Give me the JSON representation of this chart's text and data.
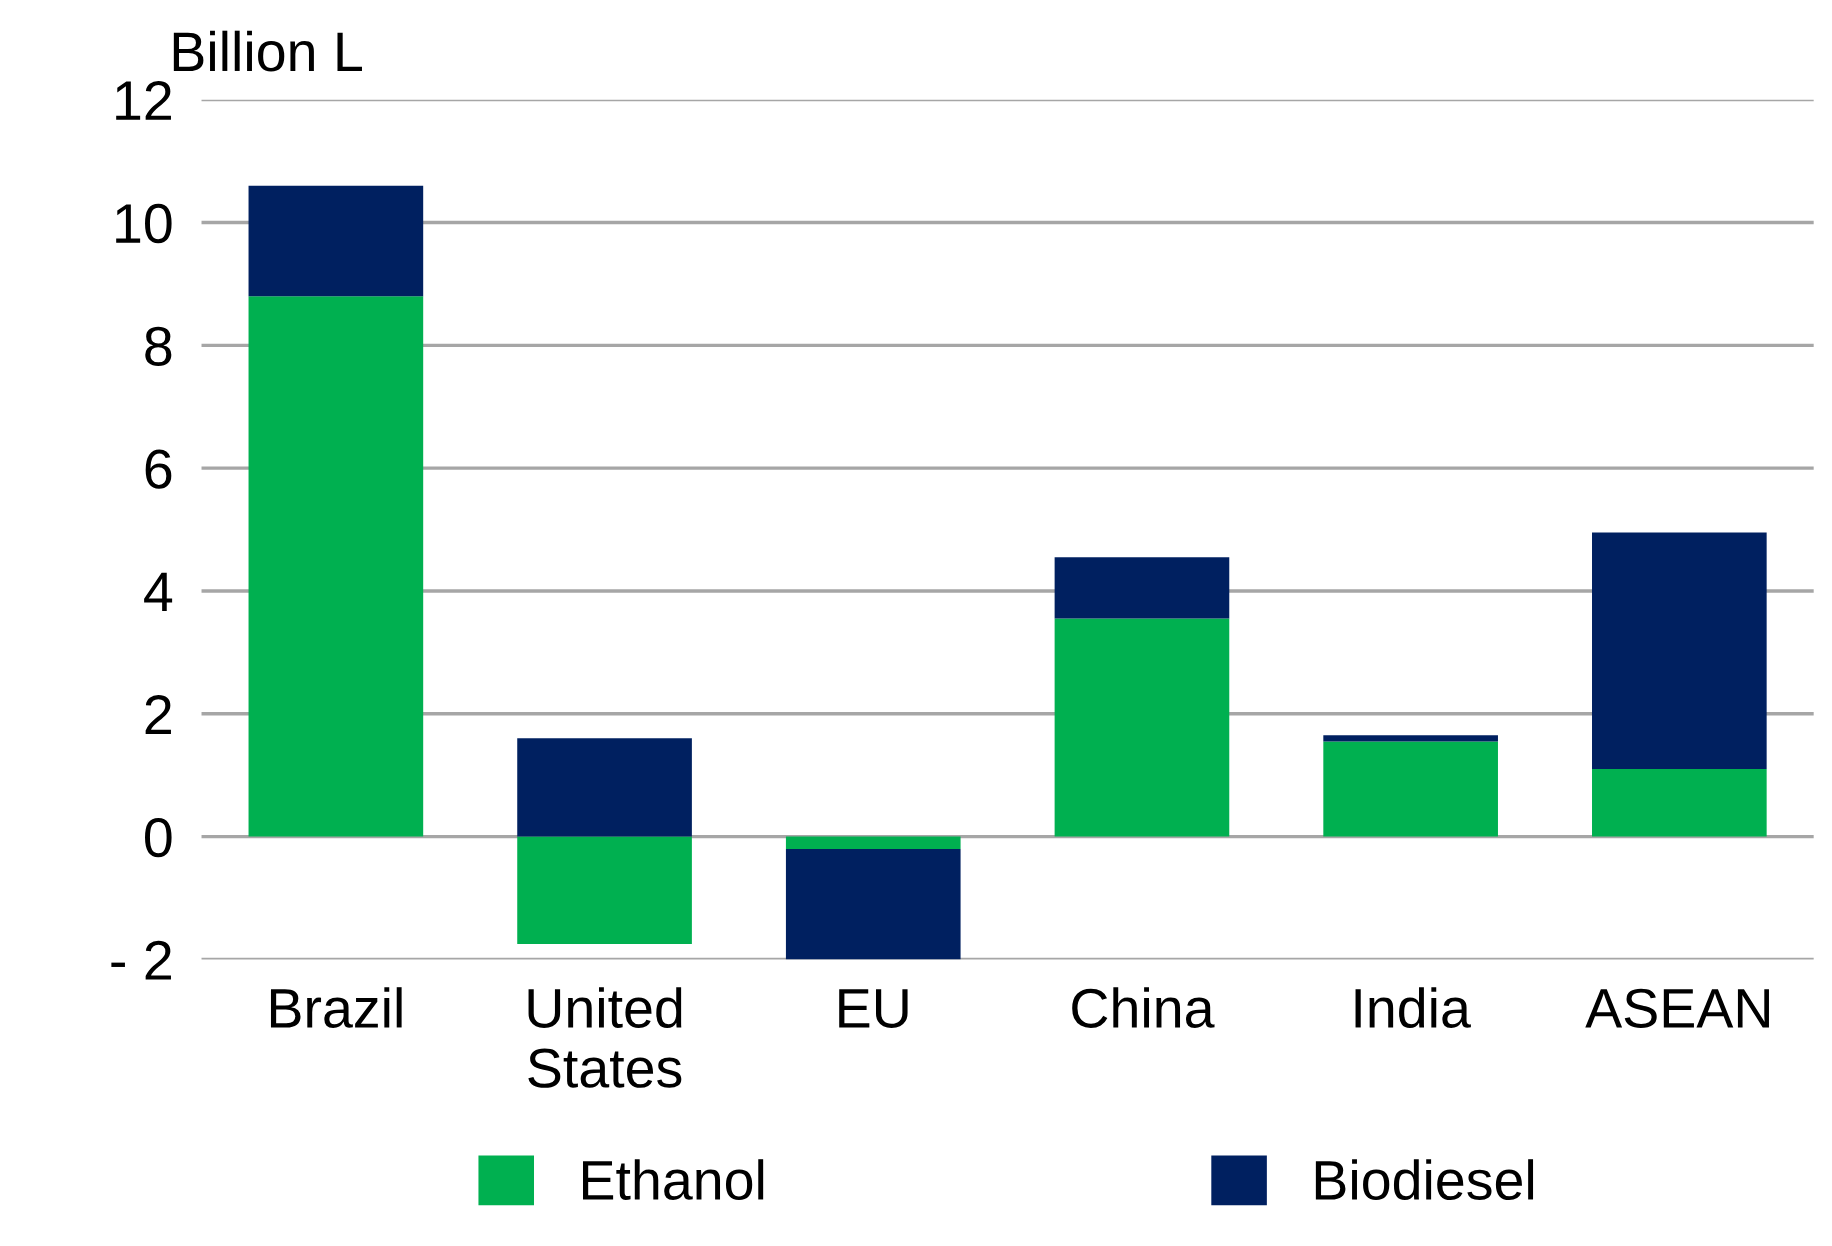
{
  "chart_data": {
    "type": "bar",
    "stacked": true,
    "ylabel": "Billion L",
    "categories": [
      "Brazil",
      "United\nStates",
      "EU",
      "China",
      "India",
      "ASEAN"
    ],
    "series": [
      {
        "name": "Ethanol",
        "color": "#00b050",
        "values": [
          8.8,
          -1.75,
          -0.2,
          3.55,
          1.55,
          1.1
        ]
      },
      {
        "name": "Biodiesel",
        "color": "#002060",
        "values": [
          1.8,
          1.6,
          -1.8,
          1.0,
          0.1,
          3.85
        ]
      }
    ],
    "ylim": [
      -2,
      12
    ],
    "yticks": [
      {
        "value": -2,
        "label": "- 2"
      },
      0,
      2,
      4,
      6,
      8,
      10,
      12
    ],
    "grid": "y",
    "legend": "bottom"
  }
}
